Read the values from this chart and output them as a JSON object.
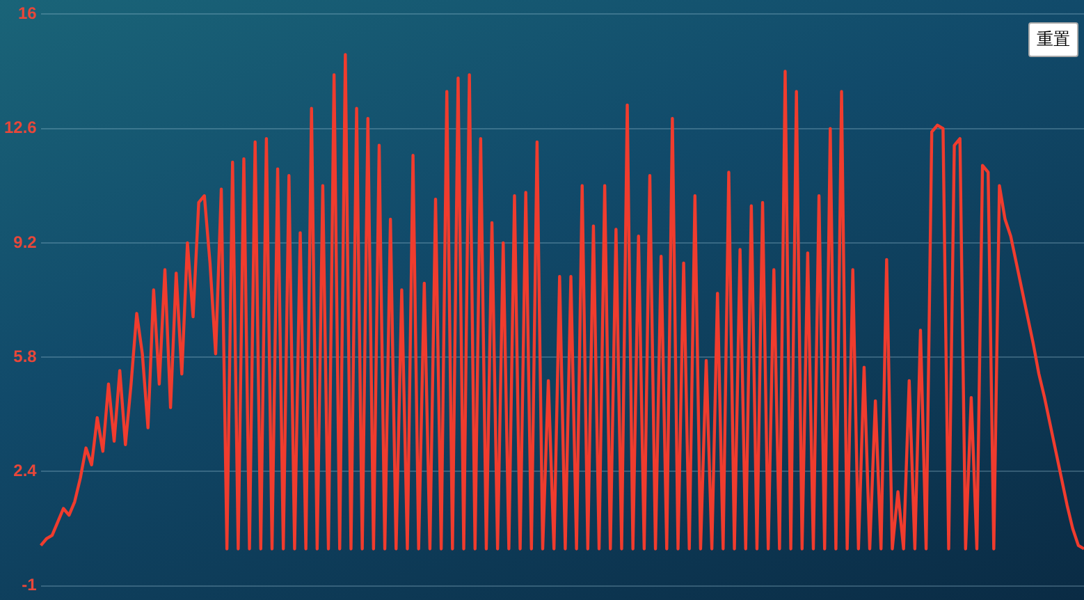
{
  "chart_data": {
    "type": "line",
    "annotations": [
      "重置"
    ],
    "categories": [
      null,
      null,
      null,
      null,
      null,
      null,
      null,
      null,
      null,
      null,
      null,
      null,
      null,
      null,
      null,
      null,
      null,
      null,
      null,
      null,
      null,
      null,
      null,
      null,
      null,
      null,
      null,
      null,
      null,
      null,
      null,
      null,
      null,
      null,
      null,
      null,
      null,
      null,
      null,
      null,
      null,
      null,
      null,
      null,
      null,
      null,
      null,
      null,
      null,
      null,
      null,
      null,
      null,
      null,
      null,
      null,
      null,
      null,
      null,
      null,
      null,
      null,
      null,
      null,
      null,
      null,
      null,
      null,
      null,
      null,
      null,
      null,
      null,
      null,
      null,
      null,
      null,
      null,
      null,
      null,
      null,
      null,
      null,
      null,
      null,
      null,
      null,
      null,
      null,
      null,
      null,
      null,
      null,
      null,
      null,
      null,
      null,
      null,
      null,
      null,
      null,
      null,
      null,
      null,
      null,
      null,
      null,
      null,
      null,
      null,
      null,
      null,
      null,
      null,
      null,
      null,
      null,
      null,
      null,
      null,
      null,
      null,
      null,
      null,
      null,
      null,
      null,
      null,
      null,
      null,
      null,
      null,
      null,
      null,
      null,
      null,
      null,
      null,
      null,
      null,
      null,
      null,
      null,
      null,
      null,
      null,
      null,
      null,
      null,
      null,
      null,
      null,
      null,
      null,
      null,
      null,
      null,
      null,
      null,
      null,
      null,
      null,
      null,
      null,
      null,
      null,
      null,
      null,
      null,
      null,
      null,
      null,
      null,
      null,
      null,
      null,
      null,
      null,
      null,
      null,
      null,
      null,
      null,
      null,
      null,
      null
    ],
    "series": [
      {
        "color": "#f03c2e",
        "values": [
          0.2,
          0.4,
          0.5,
          0.9,
          1.3,
          1.1,
          1.5,
          2.2,
          3.1,
          2.6,
          4.0,
          3.0,
          5.0,
          3.3,
          5.4,
          3.2,
          5.0,
          7.1,
          5.9,
          3.7,
          7.8,
          5.0,
          8.4,
          4.3,
          8.3,
          5.3,
          9.2,
          7.0,
          10.4,
          10.6,
          8.6,
          5.9,
          10.8,
          0.1,
          11.6,
          0.1,
          11.7,
          0.1,
          12.2,
          0.1,
          12.3,
          0.1,
          11.4,
          0.1,
          11.2,
          0.1,
          9.5,
          0.1,
          13.2,
          0.1,
          10.9,
          0.1,
          14.2,
          0.1,
          14.8,
          0.1,
          13.2,
          0.1,
          12.9,
          0.1,
          12.1,
          0.1,
          9.9,
          0.1,
          7.8,
          0.1,
          11.8,
          0.1,
          8.0,
          0.1,
          10.5,
          0.1,
          13.7,
          0.1,
          14.1,
          0.1,
          14.2,
          0.1,
          12.3,
          0.1,
          9.8,
          0.1,
          9.2,
          0.1,
          10.6,
          0.1,
          10.7,
          0.1,
          12.2,
          0.1,
          5.1,
          0.1,
          8.2,
          0.1,
          8.2,
          0.1,
          10.9,
          0.1,
          9.7,
          0.1,
          10.9,
          0.1,
          9.6,
          0.1,
          13.3,
          0.1,
          9.4,
          0.1,
          11.2,
          0.1,
          8.8,
          0.1,
          12.9,
          0.1,
          8.6,
          0.1,
          10.6,
          0.1,
          5.7,
          0.1,
          7.7,
          0.1,
          11.3,
          0.1,
          9.0,
          0.1,
          10.3,
          0.1,
          10.4,
          0.1,
          8.4,
          0.1,
          14.3,
          0.1,
          13.7,
          0.1,
          8.9,
          0.1,
          10.6,
          0.1,
          12.6,
          0.1,
          13.7,
          0.1,
          8.4,
          0.1,
          5.5,
          0.1,
          4.5,
          0.1,
          8.7,
          0.1,
          1.8,
          0.1,
          5.1,
          0.1,
          6.6,
          0.1,
          12.5,
          12.7,
          12.6,
          0.1,
          12.1,
          12.3,
          0.1,
          4.6,
          0.1,
          11.5,
          11.3,
          0.1,
          10.9,
          9.9,
          9.4,
          8.6,
          7.8,
          7.0,
          6.2,
          5.3,
          4.6,
          3.8,
          3.0,
          2.2,
          1.4,
          0.7,
          0.2,
          0.1
        ]
      }
    ],
    "ylim": [
      -1,
      16
    ],
    "yticks": [
      16,
      12.6,
      9.2,
      5.8,
      2.4,
      -1
    ],
    "grid": "y",
    "tick_labels": "y",
    "marker": "none",
    "line_style": "solid",
    "legend": false
  }
}
